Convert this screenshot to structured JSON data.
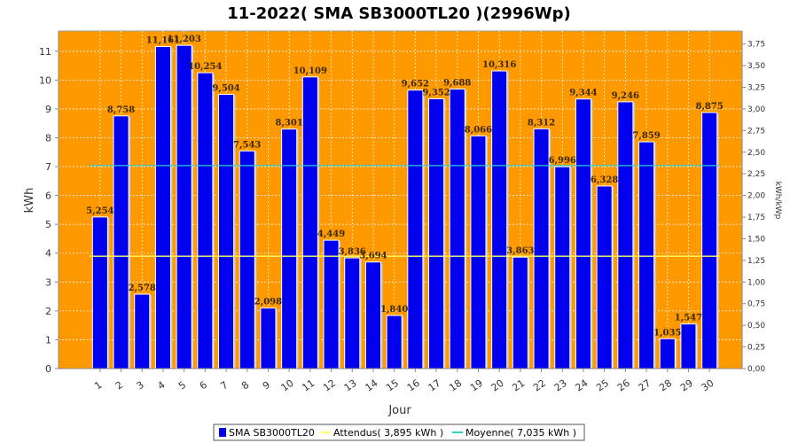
{
  "chart_data": {
    "type": "bar",
    "title": "11-2022( SMA SB3000TL20 )(2996Wp)",
    "xlabel": "Jour",
    "ylabel": "kWh",
    "ylabel_right": "kWh/kWp",
    "categories": [
      "1",
      "2",
      "3",
      "4",
      "5",
      "6",
      "7",
      "8",
      "9",
      "10",
      "11",
      "12",
      "13",
      "14",
      "15",
      "16",
      "17",
      "18",
      "19",
      "20",
      "21",
      "22",
      "23",
      "24",
      "25",
      "26",
      "27",
      "28",
      "29",
      "30"
    ],
    "series": [
      {
        "name": "SMA SB3000TL20",
        "values": [
          5.254,
          8.758,
          2.578,
          11.161,
          11.203,
          10.254,
          9.504,
          7.543,
          2.098,
          8.301,
          10.109,
          4.449,
          3.836,
          3.694,
          1.84,
          9.652,
          9.352,
          9.688,
          8.066,
          10.316,
          3.863,
          8.312,
          6.996,
          9.344,
          6.328,
          9.246,
          7.859,
          1.035,
          1.547,
          8.875
        ],
        "labels": [
          "5,254",
          "8,758",
          "2,578",
          "11,161",
          "11,203",
          "10,254",
          "9,504",
          "7,543",
          "2,098",
          "8,301",
          "10,109",
          "4,449",
          "3,836",
          "3,694",
          "1,840",
          "9,652",
          "9,352",
          "9,688",
          "8,066",
          "10,316",
          "3,863",
          "8,312",
          "6,996",
          "9,344",
          "6,328",
          "9,246",
          "7,859",
          "1,035",
          "1,547",
          "8,875"
        ],
        "color": "#0000ee"
      }
    ],
    "reference_lines": [
      {
        "name": "Attendus( 3,895 kWh )",
        "value": 3.895,
        "color": "#ffff66"
      },
      {
        "name": "Moyenne( 7,035 kWh )",
        "value": 7.035,
        "color": "#33cccc"
      }
    ],
    "ylim": [
      0,
      11.7
    ],
    "yticks": [
      0,
      1,
      2,
      3,
      4,
      5,
      6,
      7,
      8,
      9,
      10,
      11
    ],
    "ylim_right": [
      0,
      3.9
    ],
    "yticks_right": [
      "0,00",
      "0,25",
      "0,50",
      "0,75",
      "1,00",
      "1,25",
      "1,50",
      "1,75",
      "2,00",
      "2,25",
      "2,50",
      "2,75",
      "3,00",
      "3,25",
      "3,50",
      "3,75"
    ],
    "plot_background": "#ff9900",
    "grid": true,
    "legend_position": "bottom"
  }
}
